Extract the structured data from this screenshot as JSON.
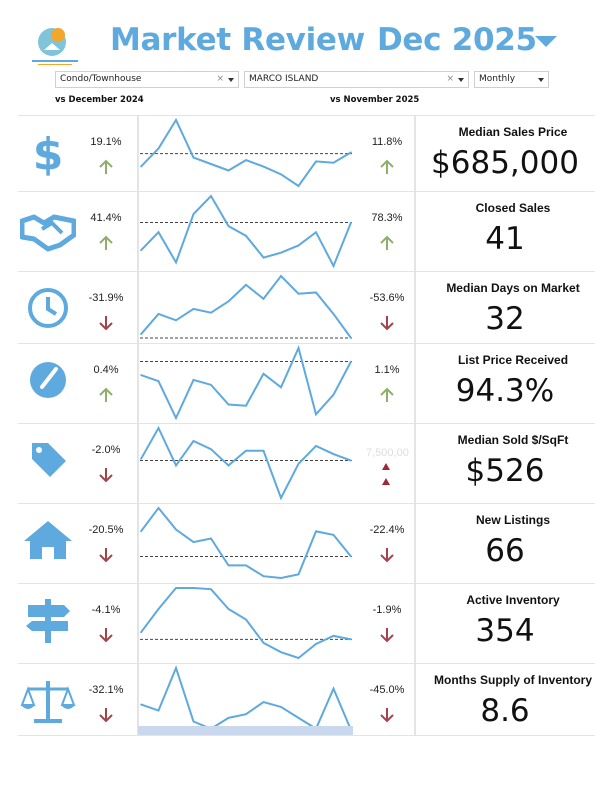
{
  "header": {
    "title_part1": "Market Review",
    "title_part2": "Dec 2025",
    "logo_text": "BONITA SPRINGS ESTERO REALTORS"
  },
  "filters": {
    "property_type": "Condo/Townhouse",
    "area": "MARCO ISLAND",
    "period": "Monthly",
    "clear_symbol": "×"
  },
  "comparison": {
    "yoy_label": "vs December 2024",
    "mom_label": "vs November 2025"
  },
  "colors": {
    "accent": "#5ea9de",
    "up": "#8fae6a",
    "down": "#a0444d",
    "line": "#5ea9de"
  },
  "metrics": [
    {
      "label": "Median Sales Price",
      "value": "$685,000",
      "yoy": "19.1%",
      "yoy_dir": "up",
      "mom": "11.8%",
      "mom_dir": "up",
      "icon": "dollar-icon",
      "spark": [
        33,
        47,
        69,
        40,
        35,
        30,
        38,
        33,
        27,
        18,
        37,
        36,
        44
      ],
      "ref": 43
    },
    {
      "label": "Closed Sales",
      "value": "41",
      "yoy": "41.4%",
      "yoy_dir": "up",
      "mom": "78.3%",
      "mom_dir": "up",
      "icon": "handshake-icon",
      "spark": [
        18,
        33,
        8,
        48,
        63,
        38,
        30,
        12,
        16,
        22,
        33,
        5,
        41
      ],
      "ref": 41
    },
    {
      "label": "Median Days on Market",
      "value": "32",
      "yoy": "-31.9%",
      "yoy_dir": "down",
      "mom": "-53.6%",
      "mom_dir": "down",
      "icon": "clock-icon",
      "spark": [
        22,
        38,
        33,
        42,
        39,
        48,
        61,
        50,
        68,
        54,
        55,
        38,
        19
      ],
      "ref": 19
    },
    {
      "label": "List Price Received",
      "value": "94.3%",
      "yoy": "0.4%",
      "yoy_dir": "up",
      "mom": "1.1%",
      "mom_dir": "up",
      "icon": "gauge-icon",
      "spark": [
        47,
        42,
        12,
        43,
        39,
        23,
        22,
        48,
        37,
        69,
        15,
        31,
        58
      ],
      "ref": 58
    },
    {
      "label": "Median Sold $/SqFt",
      "value": "$526",
      "yoy": "-2.0%",
      "yoy_dir": "down",
      "mom": "7,500,00",
      "mom_dir": "glitch",
      "icon": "price-tag-icon",
      "spark": [
        34,
        53,
        30,
        45,
        40,
        30,
        39,
        39,
        10,
        31,
        42,
        37,
        33
      ],
      "ref": 33
    },
    {
      "label": "New Listings",
      "value": "66",
      "yoy": "-20.5%",
      "yoy_dir": "down",
      "mom": "-22.4%",
      "mom_dir": "down",
      "icon": "house-icon",
      "spark": [
        49,
        62,
        50,
        43,
        45,
        30,
        30,
        24,
        23,
        25,
        49,
        47,
        35
      ],
      "ref": 35
    },
    {
      "label": "Active Inventory",
      "value": "354",
      "yoy": "-4.1%",
      "yoy_dir": "down",
      "mom": "-1.9%",
      "mom_dir": "down",
      "icon": "signpost-icon",
      "spark": [
        26,
        46,
        64,
        64,
        63,
        46,
        37,
        17,
        9,
        4,
        16,
        23,
        20
      ],
      "ref": 20
    },
    {
      "label": "Months Supply of Inventory",
      "value": "8.6",
      "yoy": "-32.1%",
      "yoy_dir": "down",
      "mom": "-45.0%",
      "mom_dir": "down",
      "icon": "scale-icon",
      "spark": [
        43,
        38,
        73,
        29,
        23,
        32,
        35,
        45,
        41,
        32,
        23,
        56,
        22
      ],
      "ref": 22
    }
  ]
}
